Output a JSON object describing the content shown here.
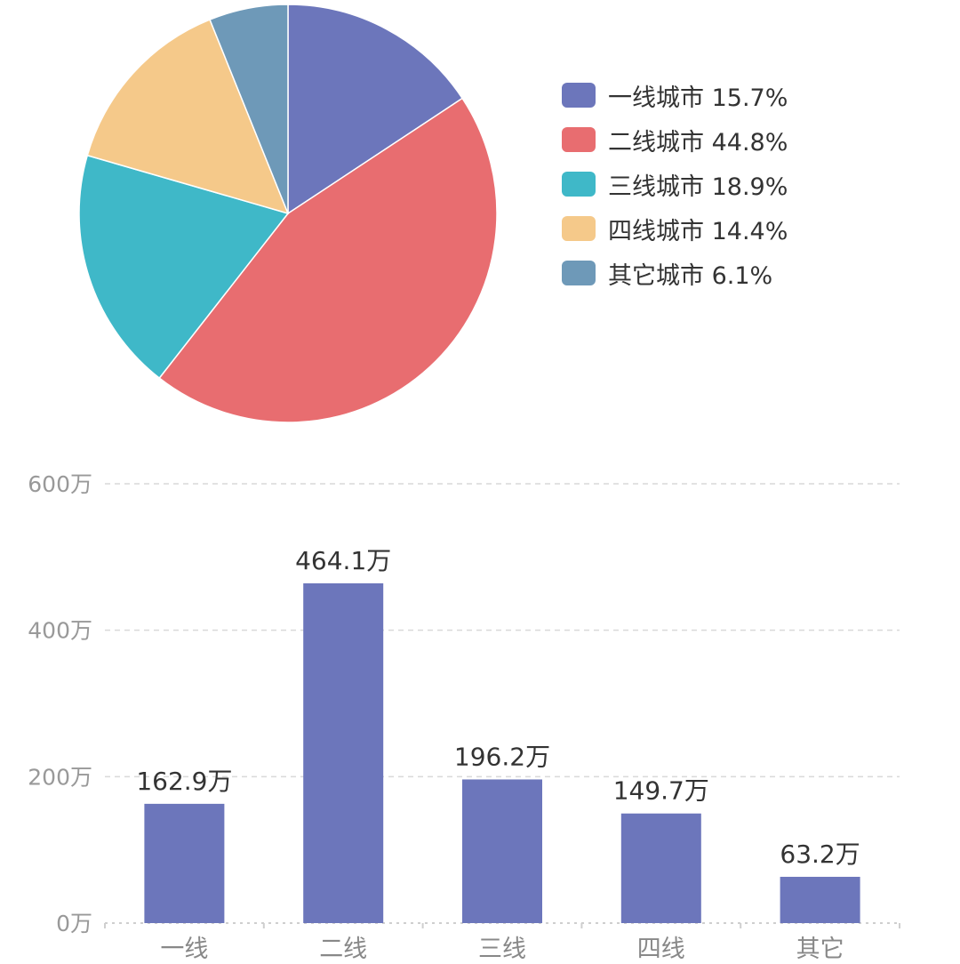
{
  "chart_data": [
    {
      "type": "pie",
      "categories": [
        "一线城市",
        "二线城市",
        "三线城市",
        "四线城市",
        "其它城市"
      ],
      "values": [
        15.7,
        44.8,
        18.9,
        14.4,
        6.1
      ],
      "legend_labels": [
        "一线城市 15.7%",
        "二线城市 44.8%",
        "三线城市 18.9%",
        "四线城市 14.4%",
        "其它城市 6.1%"
      ],
      "colors": [
        "#6c76bb",
        "#e86d70",
        "#3fb8c8",
        "#f5c98a",
        "#6e99b8"
      ],
      "legend_position": "right"
    },
    {
      "type": "bar",
      "categories": [
        "一线",
        "二线",
        "三线",
        "四线",
        "其它"
      ],
      "values": [
        162.9,
        464.1,
        196.2,
        149.7,
        63.2
      ],
      "data_labels": [
        "162.9万",
        "464.1万",
        "196.2万",
        "149.7万",
        "63.2万"
      ],
      "y_ticks": [
        0,
        200,
        400,
        600
      ],
      "y_tick_labels": [
        "0万",
        "200万",
        "400万",
        "600万"
      ],
      "ylim": [
        0,
        600
      ],
      "grid": true,
      "bar_color": "#6c76bb"
    }
  ]
}
